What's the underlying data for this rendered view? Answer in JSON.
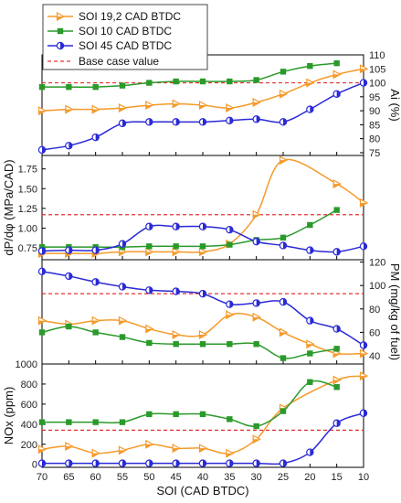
{
  "chart_data": {
    "type": "line",
    "xlabel": "SOI (CAD BTDC)",
    "x": [
      70,
      65,
      60,
      55,
      50,
      45,
      40,
      35,
      30,
      25,
      20,
      15,
      10
    ],
    "x_ticks": [
      "70",
      "65",
      "60",
      "55",
      "50",
      "45",
      "40",
      "35",
      "30",
      "25",
      "20",
      "15",
      "10"
    ],
    "xlim": [
      70,
      10
    ],
    "legend": {
      "placement": "top-left",
      "entries": [
        "SOI 19,2 CAD BTDC",
        "SOI 10 CAD BTDC",
        "SOI 45 CAD BTDC",
        "Base case value"
      ]
    },
    "colors": {
      "orange": "#f59a2a",
      "green": "#2a9a2a",
      "blue": "#2a2ad6",
      "base": "#e53030"
    },
    "panels": [
      {
        "id": "ai",
        "ylabel": "Ai (%)",
        "yaxis_side": "right",
        "ylim": [
          74,
          110
        ],
        "yticks": [
          "75",
          "80",
          "85",
          "90",
          "95",
          "100",
          "105",
          "110"
        ],
        "base": 100,
        "series": [
          {
            "name": "SOI 19,2 CAD BTDC",
            "x": [
              70,
              65,
              60,
              55,
              50,
              45,
              40,
              35,
              30,
              25,
              20,
              15,
              10
            ],
            "values": [
              90,
              90.5,
              90.5,
              91,
              92,
              92.5,
              92,
              91,
              93,
              96,
              100,
              103,
              105
            ]
          },
          {
            "name": "SOI 10 CAD BTDC",
            "x": [
              70,
              65,
              60,
              55,
              50,
              45,
              40,
              35,
              30,
              25,
              20,
              15
            ],
            "values": [
              98.5,
              98.5,
              98.5,
              99,
              100,
              100.5,
              100.5,
              100.5,
              101,
              104,
              106,
              107
            ]
          },
          {
            "name": "SOI 45 CAD BTDC",
            "x": [
              70,
              65,
              60,
              55,
              50,
              45,
              40,
              35,
              30,
              25,
              20,
              15,
              10
            ],
            "values": [
              76,
              77.5,
              80.5,
              85.5,
              86,
              86,
              86,
              86.5,
              87,
              86,
              90.5,
              96,
              100
            ]
          }
        ]
      },
      {
        "id": "dpdphi",
        "ylabel": "dP/dφ (MPa/CAD)",
        "yaxis_side": "left",
        "ylim": [
          0.6,
          1.92
        ],
        "yticks": [
          "0.75",
          "1.00",
          "1.25",
          "1.50",
          "1.75"
        ],
        "base": 1.17,
        "series": [
          {
            "name": "SOI 19,2 CAD BTDC",
            "x": [
              70,
              65,
              60,
              55,
              50,
              45,
              40,
              35,
              30,
              25,
              15,
              10
            ],
            "values": [
              0.68,
              0.68,
              0.68,
              0.7,
              0.7,
              0.7,
              0.7,
              0.8,
              1.17,
              1.86,
              1.56,
              1.32
            ]
          },
          {
            "name": "SOI 10 CAD BTDC",
            "x": [
              70,
              65,
              60,
              55,
              50,
              45,
              40,
              35,
              30,
              25,
              20,
              15
            ],
            "values": [
              0.76,
              0.76,
              0.76,
              0.76,
              0.77,
              0.77,
              0.77,
              0.79,
              0.85,
              0.88,
              1.04,
              1.23
            ]
          },
          {
            "name": "SOI 45 CAD BTDC",
            "x": [
              70,
              65,
              60,
              55,
              50,
              45,
              40,
              35,
              30,
              25,
              20,
              15,
              10
            ],
            "values": [
              0.71,
              0.72,
              0.72,
              0.8,
              1.02,
              1.02,
              1.02,
              0.98,
              0.83,
              0.78,
              0.72,
              0.7,
              0.77
            ]
          }
        ]
      },
      {
        "id": "pm",
        "ylabel": "PM (mg/kg of fuel)",
        "yaxis_side": "right",
        "ylim": [
          33,
          122
        ],
        "yticks": [
          "40",
          "60",
          "80",
          "100",
          "120"
        ],
        "base": 93,
        "series": [
          {
            "name": "SOI 19,2 CAD BTDC",
            "x": [
              70,
              65,
              60,
              55,
              50,
              45,
              40,
              35,
              30,
              25,
              20,
              15,
              10
            ],
            "values": [
              70,
              67,
              70,
              70,
              63,
              58,
              58,
              75,
              73,
              60,
              50,
              42,
              42
            ]
          },
          {
            "name": "SOI 10 CAD BTDC",
            "x": [
              70,
              65,
              60,
              55,
              50,
              45,
              40,
              35,
              30,
              25,
              20,
              15
            ],
            "values": [
              60,
              65,
              60,
              56,
              51,
              50,
              50,
              50,
              50,
              38,
              42,
              46
            ]
          },
          {
            "name": "SOI 45 CAD BTDC",
            "x": [
              70,
              65,
              60,
              55,
              50,
              45,
              40,
              35,
              30,
              25,
              20,
              15,
              10
            ],
            "values": [
              112,
              108,
              103,
              99,
              96,
              95,
              93,
              84,
              85,
              86,
              70,
              63,
              49
            ]
          }
        ]
      },
      {
        "id": "nox",
        "ylabel": "NOx (ppm)",
        "yaxis_side": "left",
        "ylim": [
          -30,
          1000
        ],
        "yticks": [
          "0",
          "200",
          "400",
          "600",
          "800",
          "1000"
        ],
        "base": 340,
        "series": [
          {
            "name": "SOI 19,2 CAD BTDC",
            "x": [
              70,
              65,
              60,
              55,
              50,
              45,
              40,
              35,
              30,
              25,
              15,
              10
            ],
            "values": [
              150,
              180,
              110,
              140,
              200,
              160,
              160,
              110,
              250,
              560,
              840,
              880
            ]
          },
          {
            "name": "SOI 10 CAD BTDC",
            "x": [
              70,
              65,
              60,
              55,
              50,
              45,
              40,
              35,
              30,
              25,
              20,
              15
            ],
            "values": [
              420,
              420,
              420,
              420,
              500,
              500,
              500,
              450,
              380,
              530,
              820,
              770
            ]
          },
          {
            "name": "SOI 45 CAD BTDC",
            "x": [
              70,
              65,
              60,
              55,
              50,
              45,
              40,
              35,
              30,
              25,
              20,
              15,
              10
            ],
            "values": [
              10,
              10,
              10,
              10,
              10,
              10,
              10,
              10,
              10,
              10,
              120,
              410,
              510
            ]
          }
        ]
      }
    ]
  }
}
